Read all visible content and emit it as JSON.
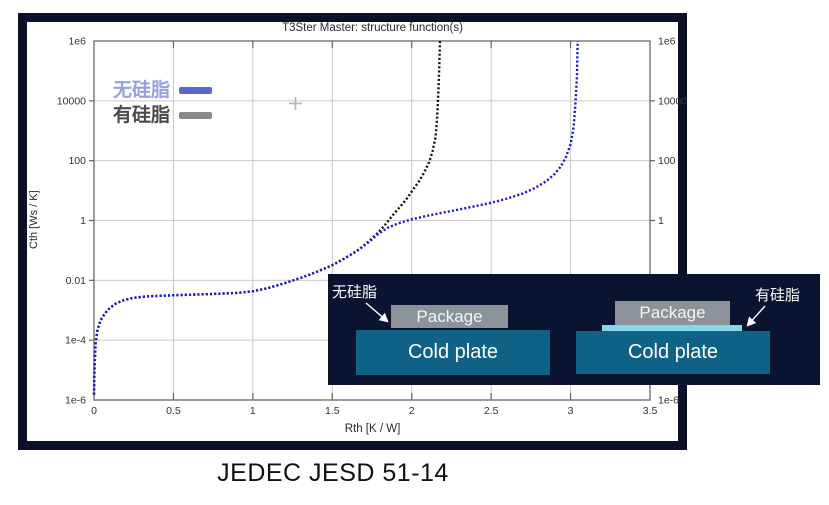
{
  "page": {
    "background": "#ffffff",
    "caption": "JEDEC JESD 51-14"
  },
  "chart_data": {
    "type": "line",
    "title": "T3Ster Master: structure function(s)",
    "xlabel": "Rth [K / W]",
    "ylabel": "Cth [Ws / K]",
    "xlim": [
      0,
      3.5
    ],
    "ylim": [
      1e-06,
      1000000.0
    ],
    "y_scale": "log",
    "grid": true,
    "grid_color": "#c9c9c9",
    "axis_color": "#666666",
    "tick_label_color": "#333333",
    "x_tick_values": [
      0,
      0.5,
      1,
      1.5,
      2,
      2.5,
      3,
      3.5
    ],
    "x_tick_labels": [
      "0",
      "0.5",
      "1",
      "1.5",
      "2",
      "2.5",
      "3",
      "3.5"
    ],
    "y_tick_values": [
      1000000.0,
      10000.0,
      100,
      1,
      0.01,
      0.0001,
      1e-06
    ],
    "y_tick_labels": [
      "1e6",
      "10000",
      "100",
      "1",
      "0.01",
      "1e-4",
      "1e-6"
    ],
    "legend_position": "top-left",
    "series": [
      {
        "name": "无硅脂",
        "color": "#1b1bce",
        "label_color": "#96a0e0",
        "swatch_color": "#5a67cc",
        "style": "dotted",
        "points": [
          [
            0.0,
            1.5e-06
          ],
          [
            0.004,
            1.5e-05
          ],
          [
            0.01,
            8e-05
          ],
          [
            0.02,
            0.0002
          ],
          [
            0.04,
            0.00045
          ],
          [
            0.07,
            0.0008
          ],
          [
            0.1,
            0.0012
          ],
          [
            0.14,
            0.0017
          ],
          [
            0.19,
            0.0022
          ],
          [
            0.25,
            0.0026
          ],
          [
            0.33,
            0.0029
          ],
          [
            0.45,
            0.0031
          ],
          [
            0.6,
            0.0033
          ],
          [
            0.75,
            0.0035
          ],
          [
            0.9,
            0.0038
          ],
          [
            1.0,
            0.0043
          ],
          [
            1.1,
            0.0056
          ],
          [
            1.2,
            0.008
          ],
          [
            1.3,
            0.012
          ],
          [
            1.4,
            0.019
          ],
          [
            1.5,
            0.032
          ],
          [
            1.58,
            0.055
          ],
          [
            1.66,
            0.1
          ],
          [
            1.73,
            0.19
          ],
          [
            1.79,
            0.36
          ],
          [
            1.85,
            0.58
          ],
          [
            1.92,
            0.82
          ],
          [
            2.0,
            1.1
          ],
          [
            2.1,
            1.45
          ],
          [
            2.2,
            1.85
          ],
          [
            2.3,
            2.35
          ],
          [
            2.4,
            3.0
          ],
          [
            2.5,
            3.9
          ],
          [
            2.6,
            5.4
          ],
          [
            2.7,
            8.0
          ],
          [
            2.78,
            12.5
          ],
          [
            2.85,
            21
          ],
          [
            2.9,
            36
          ],
          [
            2.94,
            65
          ],
          [
            2.97,
            130
          ],
          [
            3.0,
            350
          ],
          [
            3.02,
            1400.0
          ],
          [
            3.03,
            7000.0
          ],
          [
            3.04,
            60000.0
          ],
          [
            3.045,
            1000000.0
          ]
        ]
      },
      {
        "name": "有硅脂",
        "color": "#161616",
        "label_color": "#4b4b4b",
        "swatch_color": "#8a8a8a",
        "style": "dotted",
        "points": [
          [
            0.0,
            1.5e-06
          ],
          [
            0.004,
            1.5e-05
          ],
          [
            0.01,
            8e-05
          ],
          [
            0.02,
            0.0002
          ],
          [
            0.04,
            0.00045
          ],
          [
            0.07,
            0.0008
          ],
          [
            0.1,
            0.0012
          ],
          [
            0.14,
            0.0017
          ],
          [
            0.19,
            0.0022
          ],
          [
            0.25,
            0.0026
          ],
          [
            0.33,
            0.0029
          ],
          [
            0.45,
            0.0031
          ],
          [
            0.6,
            0.0033
          ],
          [
            0.75,
            0.0035
          ],
          [
            0.9,
            0.0038
          ],
          [
            1.0,
            0.0043
          ],
          [
            1.1,
            0.0056
          ],
          [
            1.2,
            0.008
          ],
          [
            1.3,
            0.012
          ],
          [
            1.4,
            0.019
          ],
          [
            1.5,
            0.032
          ],
          [
            1.58,
            0.055
          ],
          [
            1.66,
            0.1
          ],
          [
            1.73,
            0.2
          ],
          [
            1.79,
            0.4
          ],
          [
            1.84,
            0.8
          ],
          [
            1.88,
            1.5
          ],
          [
            1.93,
            3.0
          ],
          [
            1.97,
            5.5
          ],
          [
            2.01,
            11
          ],
          [
            2.05,
            22
          ],
          [
            2.08,
            42
          ],
          [
            2.11,
            90
          ],
          [
            2.13,
            200
          ],
          [
            2.15,
            600
          ],
          [
            2.16,
            2500.0
          ],
          [
            2.168,
            20000.0
          ],
          [
            2.174,
            200000.0
          ],
          [
            2.178,
            1000000.0
          ]
        ]
      }
    ]
  },
  "inset": {
    "background": "#0a1430",
    "left_label": "无硅脂",
    "right_label": "有硅脂",
    "package_label": "Package",
    "plate_label": "Cold plate",
    "colors": {
      "package": "#8b9298",
      "plate": "#0f6186",
      "grease": "#85d7ea",
      "text": "#ffffff"
    }
  }
}
